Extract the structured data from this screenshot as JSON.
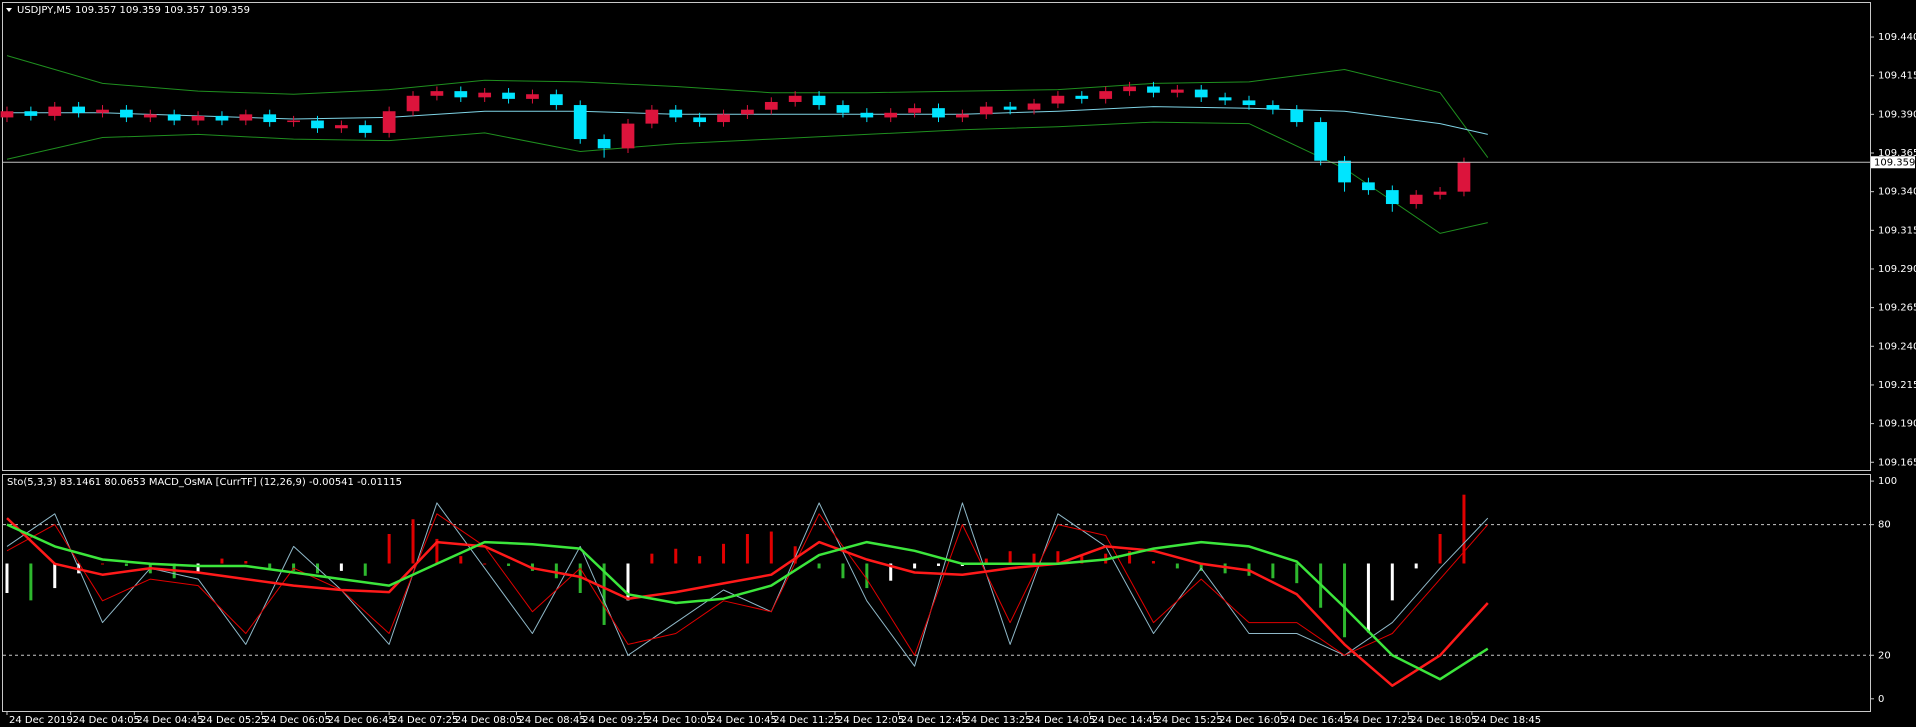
{
  "chart_data": [
    {
      "type": "candlestick",
      "title": "USDJPY,M5",
      "subtitle": "109.357 109.359 109.357 109.359",
      "bull_color": "#dc143c",
      "bear_color": "#00e5ff",
      "x": [
        0,
        3,
        6,
        9,
        12,
        15,
        18,
        21,
        24,
        27,
        30,
        33,
        36,
        39,
        42,
        45,
        48,
        51,
        54,
        57,
        60,
        63,
        66,
        69,
        72,
        75,
        78,
        81,
        84,
        87,
        90,
        93,
        96,
        99,
        102,
        105,
        108,
        111,
        114,
        117,
        120,
        123,
        126,
        129,
        132,
        135,
        138,
        141,
        144,
        147,
        150,
        153,
        156,
        159,
        162,
        165,
        168,
        171,
        174,
        177,
        180,
        183
      ],
      "open": [
        109.388,
        109.392,
        109.389,
        109.395,
        109.391,
        109.393,
        109.388,
        109.39,
        109.386,
        109.389,
        109.386,
        109.39,
        109.385,
        109.386,
        109.381,
        109.383,
        109.378,
        109.392,
        109.402,
        109.405,
        109.401,
        109.404,
        109.4,
        109.403,
        109.396,
        109.374,
        109.368,
        109.384,
        109.393,
        109.388,
        109.385,
        109.39,
        109.393,
        109.398,
        109.402,
        109.396,
        109.391,
        109.388,
        109.391,
        109.394,
        109.388,
        109.39,
        109.395,
        109.393,
        109.397,
        109.402,
        109.4,
        109.405,
        109.408,
        109.404,
        109.406,
        109.401,
        109.399,
        109.396,
        109.393,
        109.385,
        109.36,
        109.346,
        109.341,
        109.332,
        109.338,
        109.34
      ],
      "high": [
        109.395,
        109.395,
        109.398,
        109.398,
        109.396,
        109.396,
        109.393,
        109.393,
        109.392,
        109.392,
        109.393,
        109.393,
        109.389,
        109.389,
        109.386,
        109.386,
        109.395,
        109.405,
        109.408,
        109.408,
        109.407,
        109.407,
        109.406,
        109.406,
        109.399,
        109.377,
        109.387,
        109.396,
        109.396,
        109.391,
        109.393,
        109.396,
        109.401,
        109.405,
        109.405,
        109.399,
        109.394,
        109.394,
        109.397,
        109.397,
        109.393,
        109.398,
        109.398,
        109.4,
        109.405,
        109.405,
        109.408,
        109.411,
        109.411,
        109.409,
        109.409,
        109.404,
        109.402,
        109.399,
        109.396,
        109.388,
        109.363,
        109.349,
        109.344,
        109.341,
        109.343,
        109.362
      ],
      "low": [
        109.385,
        109.386,
        109.386,
        109.388,
        109.388,
        109.385,
        109.385,
        109.383,
        109.383,
        109.383,
        109.383,
        109.382,
        109.382,
        109.378,
        109.378,
        109.375,
        109.375,
        109.389,
        109.399,
        109.398,
        109.398,
        109.397,
        109.397,
        109.393,
        109.371,
        109.362,
        109.365,
        109.381,
        109.385,
        109.382,
        109.382,
        109.387,
        109.39,
        109.395,
        109.393,
        109.388,
        109.385,
        109.385,
        109.388,
        109.385,
        109.385,
        109.387,
        109.39,
        109.39,
        109.394,
        109.397,
        109.397,
        109.402,
        109.401,
        109.401,
        109.398,
        109.396,
        109.393,
        109.39,
        109.382,
        109.357,
        109.34,
        109.338,
        109.327,
        109.329,
        109.335,
        109.337
      ],
      "close": [
        109.392,
        109.389,
        109.395,
        109.391,
        109.393,
        109.388,
        109.39,
        109.386,
        109.389,
        109.386,
        109.39,
        109.385,
        109.386,
        109.381,
        109.383,
        109.378,
        109.392,
        109.402,
        109.405,
        109.401,
        109.404,
        109.4,
        109.403,
        109.396,
        109.374,
        109.368,
        109.384,
        109.393,
        109.388,
        109.385,
        109.39,
        109.393,
        109.398,
        109.402,
        109.396,
        109.391,
        109.388,
        109.391,
        109.394,
        109.388,
        109.39,
        109.395,
        109.393,
        109.397,
        109.402,
        109.4,
        109.405,
        109.408,
        109.404,
        109.406,
        109.401,
        109.399,
        109.396,
        109.393,
        109.385,
        109.36,
        109.346,
        109.341,
        109.332,
        109.338,
        109.34,
        109.359
      ],
      "overlays": {
        "x": [
          0,
          12,
          24,
          36,
          48,
          60,
          72,
          84,
          96,
          108,
          120,
          132,
          144,
          156,
          168,
          180,
          186
        ],
        "series": [
          {
            "color": "#1f8f1f",
            "values": [
              109.428,
              109.41,
              109.405,
              109.403,
              109.406,
              109.412,
              109.411,
              109.408,
              109.404,
              109.404,
              109.405,
              109.406,
              109.41,
              109.411,
              109.419,
              109.404,
              109.362
            ]
          },
          {
            "color": "#1f8f1f",
            "values": [
              109.361,
              109.375,
              109.377,
              109.374,
              109.373,
              109.378,
              109.366,
              109.371,
              109.374,
              109.377,
              109.38,
              109.382,
              109.385,
              109.384,
              109.355,
              109.313,
              109.32
            ]
          },
          {
            "color": "#7fd4e6",
            "values": [
              109.391,
              109.391,
              109.389,
              109.387,
              109.388,
              109.392,
              109.392,
              109.39,
              109.39,
              109.39,
              109.39,
              109.392,
              109.395,
              109.394,
              109.392,
              109.384,
              109.377
            ]
          }
        ]
      },
      "current_price": 109.359,
      "xlim": [
        -0.5,
        234
      ],
      "xticks": [
        {
          "value": 0,
          "label": "24 Dec 2019"
        },
        {
          "value": 8,
          "label": "24 Dec 04:05"
        },
        {
          "value": 16,
          "label": "24 Dec 04:45"
        },
        {
          "value": 24,
          "label": "24 Dec 05:25"
        },
        {
          "value": 32,
          "label": "24 Dec 06:05"
        },
        {
          "value": 40,
          "label": "24 Dec 06:45"
        },
        {
          "value": 48,
          "label": "24 Dec 07:25"
        },
        {
          "value": 56,
          "label": "24 Dec 08:05"
        },
        {
          "value": 64,
          "label": "24 Dec 08:45"
        },
        {
          "value": 72,
          "label": "24 Dec 09:25"
        },
        {
          "value": 80,
          "label": "24 Dec 10:05"
        },
        {
          "value": 88,
          "label": "24 Dec 10:45"
        },
        {
          "value": 96,
          "label": "24 Dec 11:25"
        },
        {
          "value": 104,
          "label": "24 Dec 12:05"
        },
        {
          "value": 112,
          "label": "24 Dec 12:45"
        },
        {
          "value": 120,
          "label": "24 Dec 13:25"
        },
        {
          "value": 128,
          "label": "24 Dec 14:05"
        },
        {
          "value": 136,
          "label": "24 Dec 14:45"
        },
        {
          "value": 144,
          "label": "24 Dec 15:25"
        },
        {
          "value": 152,
          "label": "24 Dec 16:05"
        },
        {
          "value": 160,
          "label": "24 Dec 16:45"
        },
        {
          "value": 168,
          "label": "24 Dec 17:25"
        },
        {
          "value": 176,
          "label": "24 Dec 18:05"
        },
        {
          "value": 184,
          "label": "24 Dec 18:45"
        }
      ],
      "ylim": [
        109.16,
        109.462
      ],
      "yticks": [
        {
          "value": 109.44,
          "label": "109.440"
        },
        109.415,
        {
          "value": 109.39,
          "label": "109.390"
        },
        109.365,
        {
          "value": 109.34,
          "label": "109.340"
        },
        109.315,
        {
          "value": 109.29,
          "label": "109.290"
        },
        109.265,
        {
          "value": 109.24,
          "label": "109.240"
        },
        109.215,
        {
          "value": 109.19,
          "label": "109.190"
        },
        109.165
      ],
      "grid": false
    },
    {
      "type": "line",
      "title": "Sto(5,3,3) 83.1461 80.0653  MACD_OsMA [CurrTF] (12,26,9) -0.00541 -0.01115",
      "xlim": [
        -0.5,
        234
      ],
      "ylim": [
        -5.6,
        102.8
      ],
      "yticks": [
        100,
        80,
        20,
        0
      ],
      "levels": [
        80,
        20
      ],
      "y2lim": [
        -0.06,
        0.036
      ],
      "histogram": {
        "axis": "y2",
        "up_color": "#e00000",
        "down_color": "#2eb82e",
        "flat_color": "#ffffff",
        "x": [
          0,
          3,
          6,
          9,
          12,
          15,
          18,
          21,
          24,
          27,
          30,
          33,
          36,
          39,
          42,
          45,
          48,
          51,
          54,
          57,
          60,
          63,
          66,
          69,
          72,
          75,
          78,
          81,
          84,
          87,
          90,
          93,
          96,
          99,
          102,
          105,
          108,
          111,
          114,
          117,
          120,
          123,
          126,
          129,
          132,
          135,
          138,
          141,
          144,
          147,
          150,
          153,
          156,
          159,
          162,
          165,
          168,
          171,
          174,
          177,
          180,
          183
        ],
        "values": [
          -0.012,
          -0.015,
          -0.01,
          -0.004,
          0.0,
          -0.001,
          -0.004,
          -0.006,
          -0.004,
          0.002,
          0.001,
          -0.002,
          -0.003,
          -0.004,
          -0.003,
          -0.005,
          0.012,
          0.018,
          0.01,
          0.003,
          0.0,
          -0.001,
          -0.003,
          -0.006,
          -0.012,
          -0.025,
          -0.015,
          0.004,
          0.006,
          0.003,
          0.008,
          0.012,
          0.013,
          0.007,
          -0.002,
          -0.006,
          -0.01,
          -0.007,
          -0.002,
          -0.001,
          -0.001,
          0.002,
          0.005,
          0.004,
          0.005,
          0.003,
          0.004,
          0.005,
          0.001,
          -0.002,
          -0.003,
          -0.004,
          -0.005,
          -0.006,
          -0.008,
          -0.018,
          -0.03,
          -0.028,
          -0.015,
          -0.002,
          0.012,
          0.028
        ]
      },
      "x": [
        0,
        6,
        12,
        18,
        24,
        30,
        36,
        42,
        48,
        54,
        60,
        66,
        72,
        78,
        84,
        90,
        96,
        102,
        108,
        114,
        120,
        126,
        132,
        138,
        144,
        150,
        156,
        162,
        168,
        174,
        180,
        186
      ],
      "series": [
        {
          "color": "#8fb8c8",
          "width": 1,
          "values": [
            70,
            85,
            35,
            60,
            55,
            25,
            70,
            50,
            25,
            90,
            60,
            30,
            70,
            20,
            35,
            50,
            40,
            90,
            45,
            15,
            90,
            25,
            85,
            70,
            30,
            60,
            30,
            30,
            20,
            35,
            60,
            83
          ]
        },
        {
          "color": "#e00000",
          "width": 1,
          "values": [
            68,
            80,
            45,
            55,
            52,
            30,
            60,
            50,
            30,
            85,
            70,
            40,
            60,
            25,
            30,
            45,
            40,
            85,
            55,
            20,
            80,
            35,
            80,
            75,
            35,
            55,
            35,
            35,
            20,
            30,
            55,
            80
          ]
        },
        {
          "color": "#ff1a1a",
          "width": 2.5,
          "values": [
            83,
            62,
            57,
            60,
            58,
            55,
            52,
            50,
            49,
            72,
            70,
            60,
            56,
            46,
            49,
            53,
            57,
            72,
            64,
            58,
            57,
            60,
            62,
            70,
            68,
            62,
            59,
            48,
            25,
            6,
            20,
            44
          ]
        },
        {
          "color": "#3ce63c",
          "width": 2.5,
          "values": [
            80,
            70,
            64,
            62,
            61,
            61,
            58,
            55,
            52,
            62,
            72,
            71,
            69,
            48,
            44,
            46,
            52,
            66,
            72,
            68,
            62,
            62,
            62,
            64,
            69,
            72,
            70,
            63,
            42,
            20,
            9,
            23
          ]
        }
      ]
    }
  ]
}
